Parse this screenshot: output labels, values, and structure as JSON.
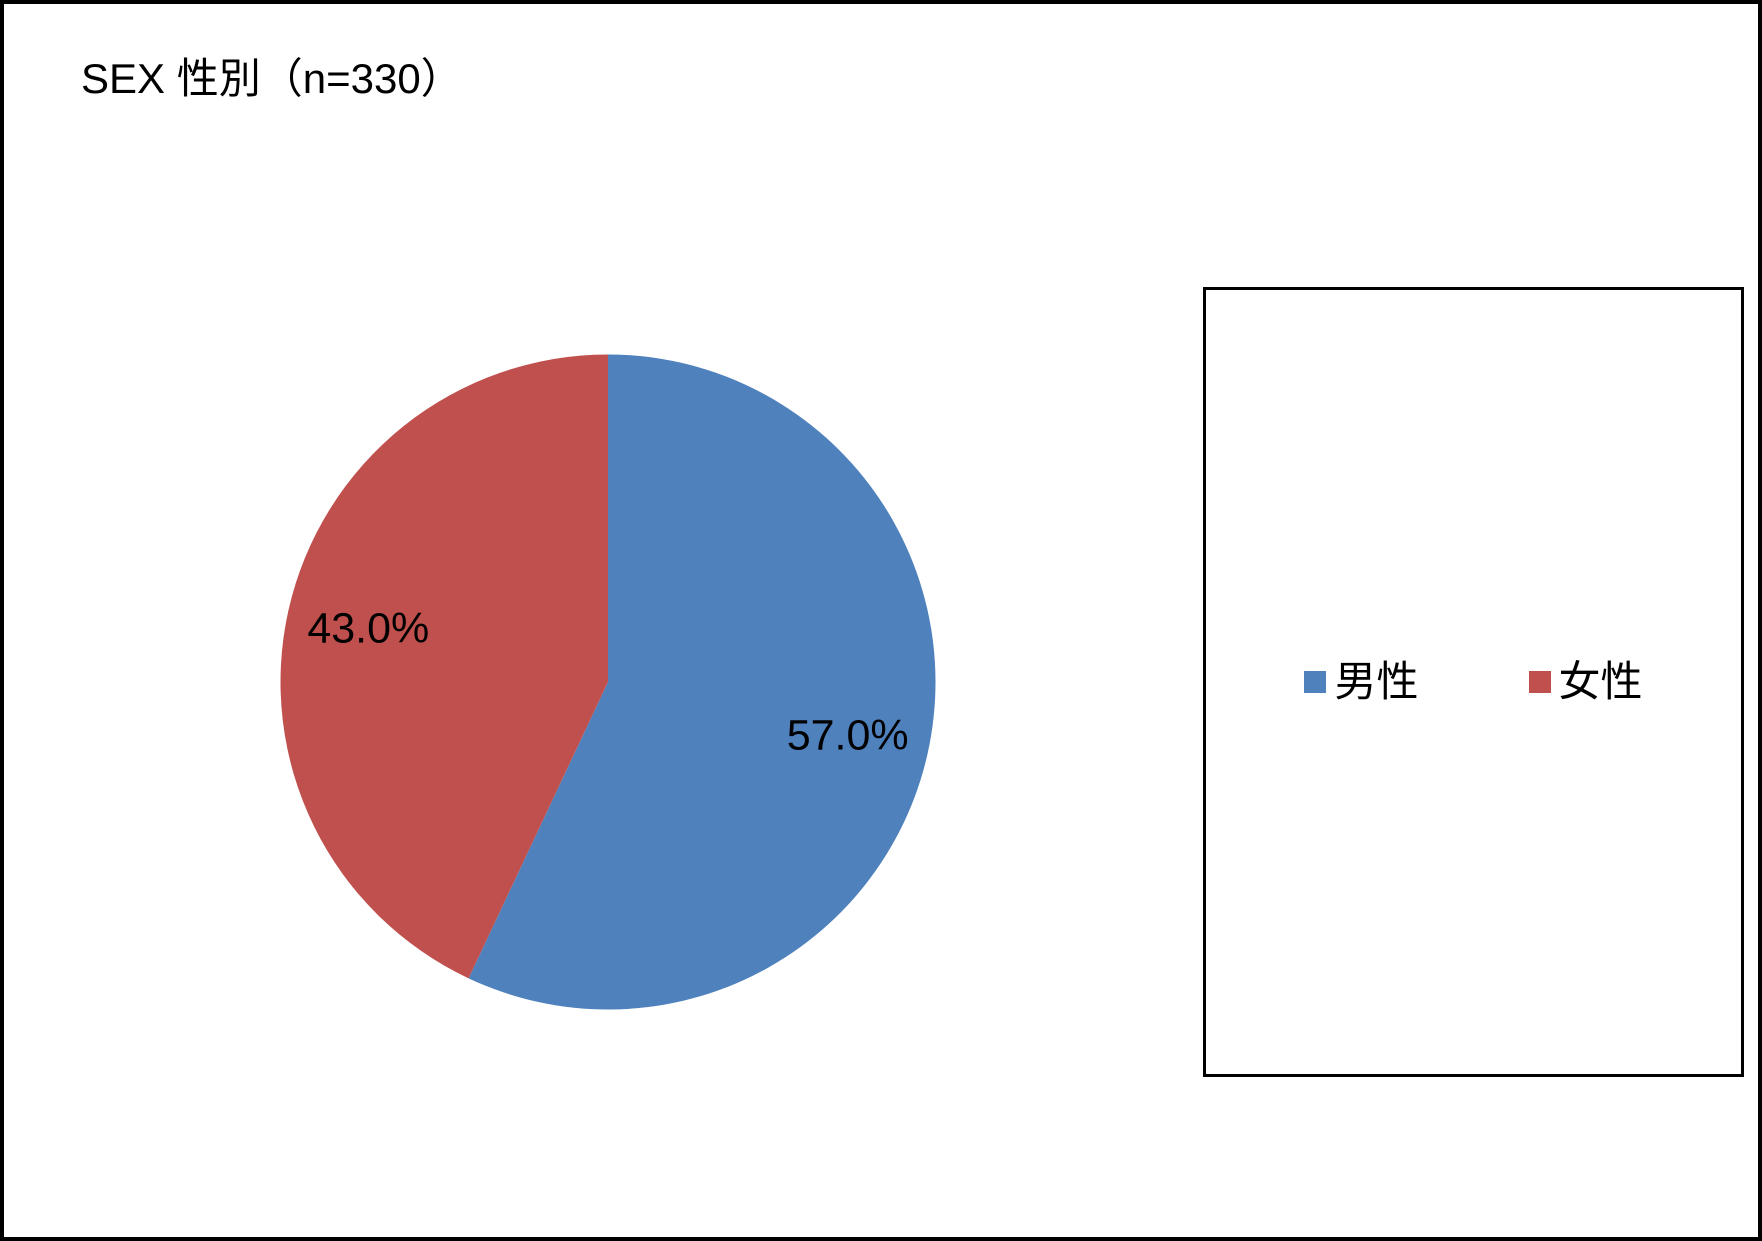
{
  "title": "SEX 性別（n=330）",
  "chart_data": {
    "type": "pie",
    "title": "SEX 性別（n=330）",
    "n": 330,
    "categories": [
      "男性",
      "女性"
    ],
    "values": [
      57.0,
      43.0
    ],
    "value_labels": [
      "57.0%",
      "43.0%"
    ],
    "colors": [
      "#4F81BD",
      "#C0504D"
    ],
    "start_angle_deg": 0,
    "direction": "clockwise",
    "label_radius_frac": 0.75,
    "legend_position": "right-box"
  },
  "legend": {
    "items": [
      {
        "label": "男性",
        "color": "#4F81BD"
      },
      {
        "label": "女性",
        "color": "#C0504D"
      }
    ]
  }
}
